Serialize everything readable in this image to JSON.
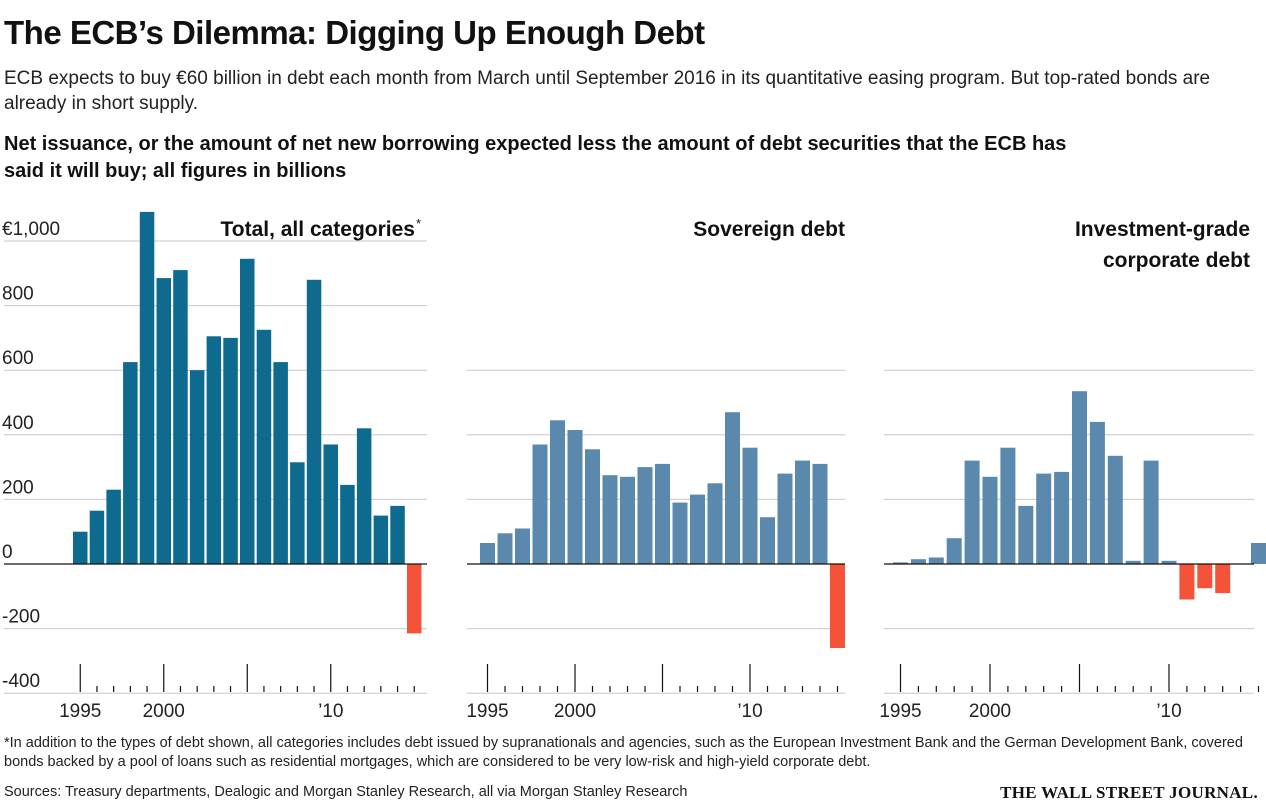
{
  "header": {
    "title": "The ECB’s Dilemma: Digging Up Enough Debt",
    "subtitle": "ECB expects to buy €60 billion in debt each month from March until September 2016 in its quantitative easing program. But top-rated bonds are already in short supply.",
    "chart_description": "Net issuance, or the amount of net new borrowing expected less the amount of debt securities that the ECB has said it will buy; all figures in billions"
  },
  "footer": {
    "footnote": "*In addition to the types of debt shown, all categories includes debt issued by supranationals and agencies, such as the European Investment Bank and the German Development Bank, covered bonds backed by a pool of loans such as residential mortgages, which are considered to be very low-risk and high-yield corporate debt.",
    "sources": "Sources: Treasury departments, Dealogic and Morgan Stanley Research, all via Morgan Stanley Research",
    "logo": "THE WALL STREET JOURNAL."
  },
  "colors": {
    "total_bar": "#0e6a8e",
    "category_bar": "#5b89ad",
    "negative_bar": "#f4533a",
    "grid": "#c8c8c8",
    "axis": "#111111"
  },
  "chart_data": [
    {
      "type": "bar",
      "title": "Total, all categories",
      "title_marker": "*",
      "x": [
        1995,
        1996,
        1997,
        1998,
        1999,
        2000,
        2001,
        2002,
        2003,
        2004,
        2005,
        2006,
        2007,
        2008,
        2009,
        2010,
        2011,
        2012,
        2013,
        2014,
        2015
      ],
      "values": [
        100,
        165,
        230,
        625,
        1090,
        885,
        910,
        600,
        705,
        700,
        945,
        725,
        625,
        315,
        880,
        370,
        245,
        420,
        150,
        180,
        -215
      ],
      "ylim": [
        -400,
        1000
      ],
      "yticks": [
        -400,
        -200,
        0,
        200,
        400,
        600,
        800,
        1000
      ],
      "ytick_labels": [
        "-400",
        "-200",
        "0",
        "200",
        "400",
        "600",
        "800",
        "€1,000"
      ],
      "xtick_labels": [
        {
          "year": 1995,
          "label": "1995"
        },
        {
          "year": 2000,
          "label": "2000"
        },
        {
          "year": 2010,
          "label": "’10"
        }
      ]
    },
    {
      "type": "bar",
      "title": "Sovereign debt",
      "x": [
        1995,
        1996,
        1997,
        1998,
        1999,
        2000,
        2001,
        2002,
        2003,
        2004,
        2005,
        2006,
        2007,
        2008,
        2009,
        2010,
        2011,
        2012,
        2013,
        2014,
        2015
      ],
      "values": [
        65,
        95,
        110,
        370,
        445,
        415,
        355,
        275,
        270,
        300,
        310,
        190,
        215,
        250,
        470,
        360,
        145,
        280,
        320,
        310,
        -260
      ],
      "ylim": [
        -400,
        1000
      ],
      "xtick_labels": [
        {
          "year": 1995,
          "label": "1995"
        },
        {
          "year": 2000,
          "label": "2000"
        },
        {
          "year": 2010,
          "label": "’10"
        }
      ]
    },
    {
      "type": "bar",
      "title": "Investment-grade corporate debt",
      "title_lines": [
        "Investment-grade",
        "corporate debt"
      ],
      "x": [
        1995,
        1996,
        1997,
        1998,
        1999,
        2000,
        2001,
        2002,
        2003,
        2004,
        2005,
        2006,
        2007,
        2008,
        2009,
        2010,
        2011,
        2012,
        2013,
        2014,
        2015
      ],
      "values": [
        5,
        15,
        20,
        80,
        320,
        270,
        360,
        180,
        280,
        285,
        535,
        440,
        335,
        10,
        320,
        10,
        -110,
        -75,
        -90,
        0,
        65
      ],
      "ylim": [
        -400,
        1000
      ],
      "xtick_labels": [
        {
          "year": 1995,
          "label": "1995"
        },
        {
          "year": 2000,
          "label": "2000"
        },
        {
          "year": 2010,
          "label": "’10"
        }
      ]
    }
  ]
}
